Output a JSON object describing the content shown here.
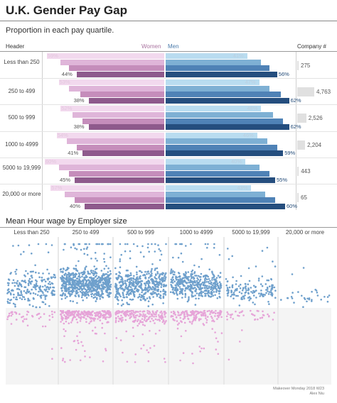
{
  "title": "U.K. Gender Pay Gap",
  "subtitle": "Proportion in each pay quartile.",
  "headers": {
    "left": "Header",
    "women": "Women",
    "men": "Men",
    "company": "Company #"
  },
  "section2_title": "Mean Hour wage by Employer size",
  "footer": {
    "line1": "Makeover Monday 2018 W23",
    "line2": "Alex Niu"
  },
  "colors": {
    "women": [
      "#f2d9ee",
      "#dfb5d9",
      "#c58dbb",
      "#8e5a8c"
    ],
    "men": [
      "#b9dcf0",
      "#7eb0d4",
      "#4f82b6",
      "#254e7e"
    ],
    "dot_men": "#6fa0cc",
    "dot_women": "#e6a4d8"
  },
  "chart_data": [
    {
      "type": "bar",
      "title": "Proportion in each pay quartile.",
      "categories": [
        "Less than 250",
        "250 to 499",
        "500 to 999",
        "1000 to 4999",
        "5000 to 19,999",
        "20,000 or more"
      ],
      "series": [
        {
          "name": "Women",
          "values": [
            [
              59,
              52,
              48,
              44
            ],
            [
              53,
              48,
              42,
              38
            ],
            [
              52,
              46,
              41,
              38
            ],
            [
              54,
              49,
              44,
              41
            ],
            [
              60,
              53,
              48,
              45
            ],
            [
              57,
              50,
              45,
              40
            ]
          ]
        },
        {
          "name": "Men",
          "values": [
            [
              41,
              48,
              52,
              56
            ],
            [
              47,
              52,
              58,
              62
            ],
            [
              48,
              54,
              59,
              62
            ],
            [
              46,
              51,
              56,
              59
            ],
            [
              40,
              47,
              52,
              55
            ],
            [
              43,
              50,
              55,
              60
            ]
          ]
        }
      ],
      "visible_labels": {
        "women": [
          [
            "59%",
            "44%"
          ],
          [
            "53%",
            "38%"
          ],
          [
            "52%",
            "38%"
          ],
          [
            "54%",
            "41%"
          ],
          [
            "60%",
            "45%"
          ],
          [
            "57%",
            "40%"
          ]
        ],
        "men": [
          [
            "41%",
            "56%"
          ],
          [
            "47%",
            "62%"
          ],
          [
            "48%",
            "62%"
          ],
          [
            "46%",
            "59%"
          ],
          [
            "40%",
            "55%"
          ],
          [
            "43%",
            "60%"
          ]
        ]
      },
      "company_counts": [
        {
          "category": "Less than 250",
          "value": 275,
          "label": "275"
        },
        {
          "category": "250 to 499",
          "value": 4763,
          "label": "4,763"
        },
        {
          "category": "500 to 999",
          "value": 2526,
          "label": "2,526"
        },
        {
          "category": "1000 to 4999",
          "value": 2204,
          "label": "2,204"
        },
        {
          "category": "5000 to 19,999",
          "value": 443,
          "label": "443"
        },
        {
          "category": "20,000 or more",
          "value": 65,
          "label": "65"
        }
      ]
    },
    {
      "type": "scatter",
      "title": "Mean Hour wage by Employer size",
      "categories": [
        "Less than 250",
        "250 to 499",
        "500 to 999",
        "1000 to 4999",
        "5000 to 19,999",
        "20,000 or more"
      ],
      "series": [
        {
          "name": "Men"
        },
        {
          "name": "Women"
        }
      ],
      "note": "Jittered strip plot of employer mean hourly wages; one dot per employer (dot counts approximate)."
    }
  ]
}
